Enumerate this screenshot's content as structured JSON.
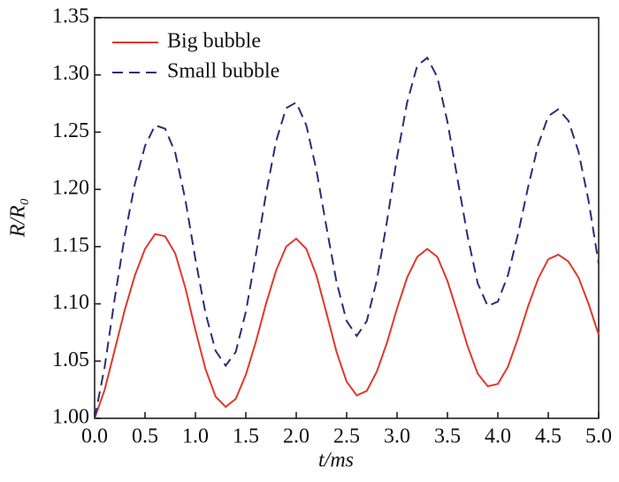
{
  "chart_data": {
    "type": "line",
    "xlabel": "t/ms",
    "ylabel": "R/R₀",
    "x": [
      0,
      0.1,
      0.2,
      0.3,
      0.4,
      0.5,
      0.6,
      0.7,
      0.8,
      0.9,
      1.0,
      1.1,
      1.2,
      1.3,
      1.4,
      1.5,
      1.6,
      1.7,
      1.8,
      1.9,
      2.0,
      2.1,
      2.2,
      2.3,
      2.4,
      2.5,
      2.6,
      2.7,
      2.8,
      2.9,
      3.0,
      3.1,
      3.2,
      3.3,
      3.4,
      3.5,
      3.6,
      3.7,
      3.8,
      3.9,
      4.0,
      4.1,
      4.2,
      4.3,
      4.4,
      4.5,
      4.6,
      4.7,
      4.8,
      4.9,
      5.0
    ],
    "series": [
      {
        "name": "Big bubble",
        "color": "#e0382a",
        "dash": "solid",
        "values": [
          1.0,
          1.025,
          1.06,
          1.095,
          1.125,
          1.148,
          1.161,
          1.159,
          1.144,
          1.114,
          1.077,
          1.043,
          1.019,
          1.01,
          1.017,
          1.038,
          1.067,
          1.1,
          1.129,
          1.15,
          1.157,
          1.148,
          1.125,
          1.092,
          1.058,
          1.032,
          1.02,
          1.024,
          1.041,
          1.066,
          1.096,
          1.123,
          1.141,
          1.148,
          1.141,
          1.12,
          1.092,
          1.063,
          1.039,
          1.028,
          1.03,
          1.045,
          1.07,
          1.098,
          1.122,
          1.139,
          1.143,
          1.137,
          1.123,
          1.1,
          1.073
        ]
      },
      {
        "name": "Small bubble",
        "color": "#2b2c7a",
        "dash": "dashed",
        "values": [
          1.0,
          1.045,
          1.105,
          1.16,
          1.205,
          1.238,
          1.256,
          1.253,
          1.232,
          1.191,
          1.139,
          1.092,
          1.059,
          1.046,
          1.058,
          1.093,
          1.143,
          1.196,
          1.242,
          1.271,
          1.276,
          1.256,
          1.217,
          1.167,
          1.119,
          1.085,
          1.072,
          1.085,
          1.121,
          1.172,
          1.228,
          1.276,
          1.308,
          1.315,
          1.298,
          1.259,
          1.209,
          1.159,
          1.118,
          1.098,
          1.102,
          1.125,
          1.161,
          1.202,
          1.239,
          1.264,
          1.27,
          1.26,
          1.233,
          1.19,
          1.135
        ]
      }
    ],
    "xlim": [
      0,
      5
    ],
    "ylim": [
      1.0,
      1.35
    ],
    "xticks": [
      {
        "value": 0,
        "label": "0.0"
      },
      0.5,
      {
        "value": 1,
        "label": "1.0"
      },
      1.5,
      {
        "value": 2,
        "label": "2.0"
      },
      2.5,
      {
        "value": 3,
        "label": "3.0"
      },
      3.5,
      {
        "value": 4,
        "label": "4.0"
      },
      4.5,
      {
        "value": 5,
        "label": "5.0"
      }
    ],
    "yticks": [
      {
        "value": 1.0,
        "label": "1.00"
      },
      1.05,
      {
        "value": 1.1,
        "label": "1.10"
      },
      1.15,
      {
        "value": 1.2,
        "label": "1.20"
      },
      1.25,
      {
        "value": 1.3,
        "label": "1.30"
      },
      1.35
    ],
    "legend": "upper-left",
    "grid": false
  }
}
